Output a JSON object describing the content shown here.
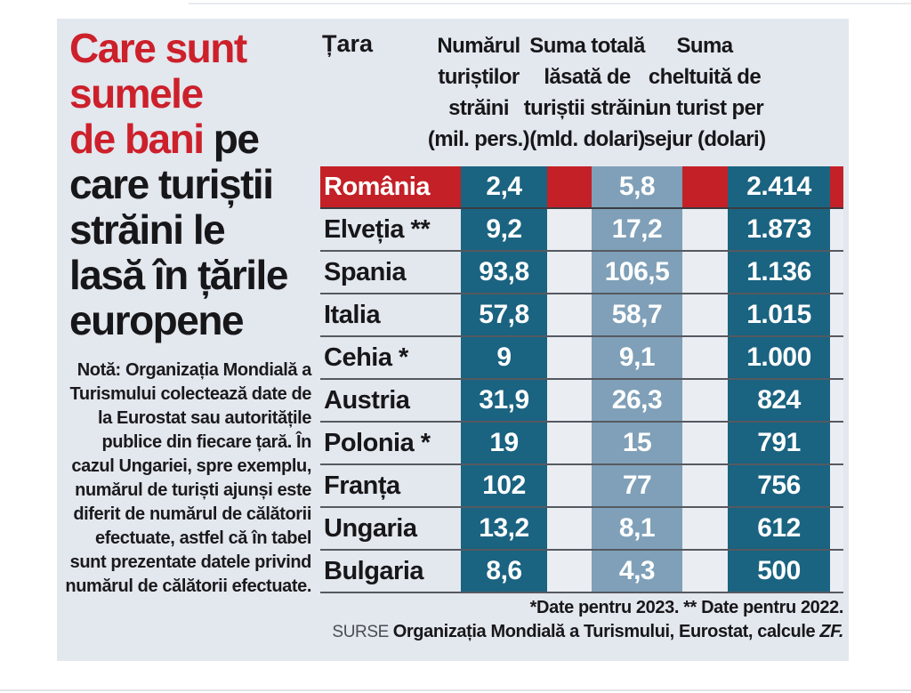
{
  "title": {
    "red_lines": "Care sunt\nsumele\nde bani",
    "black_inline": " pe",
    "black_lines": "care turiștii\nstrăini le\nlasă în țările\neuropene"
  },
  "note": "Notă: Organizația Mondială a Turismului colectează date de la Eurostat sau autoritățile publice din fiecare țară. În cazul Ungariei, spre exemplu, numărul de turiști ajunși este diferit de numărul de călătorii efectuate, astfel că în tabel sunt prezentate datele privind numărul de călătorii efectuate.",
  "table": {
    "headers": {
      "country": "Țara",
      "col1": "Numărul\nturiștilor\nstrăini\n(mil. pers.)",
      "col2": "Suma totală\nlăsată de\nturiștii străini\n(mld. dolari)",
      "col3": "Suma\ncheltuită de\nun turist per\nsejur (dolari)"
    },
    "rows": [
      {
        "country": "România",
        "tourists": "2,4",
        "total": "5,8",
        "per_tourist": "2.414",
        "highlight": true
      },
      {
        "country": "Elveția **",
        "tourists": "9,2",
        "total": "17,2",
        "per_tourist": "1.873",
        "highlight": false
      },
      {
        "country": "Spania",
        "tourists": "93,8",
        "total": "106,5",
        "per_tourist": "1.136",
        "highlight": false
      },
      {
        "country": "Italia",
        "tourists": "57,8",
        "total": "58,7",
        "per_tourist": "1.015",
        "highlight": false
      },
      {
        "country": "Cehia *",
        "tourists": "9",
        "total": "9,1",
        "per_tourist": "1.000",
        "highlight": false
      },
      {
        "country": "Austria",
        "tourists": "31,9",
        "total": "26,3",
        "per_tourist": "824",
        "highlight": false
      },
      {
        "country": "Polonia *",
        "tourists": "19",
        "total": "15",
        "per_tourist": "791",
        "highlight": false
      },
      {
        "country": "Franța",
        "tourists": "102",
        "total": "77",
        "per_tourist": "756",
        "highlight": false
      },
      {
        "country": "Ungaria",
        "tourists": "13,2",
        "total": "8,1",
        "per_tourist": "612",
        "highlight": false
      },
      {
        "country": "Bulgaria",
        "tourists": "8,6",
        "total": "4,3",
        "per_tourist": "500",
        "highlight": false
      }
    ]
  },
  "footer": {
    "footnote": "*Date pentru 2023. ** Date pentru 2022.",
    "source_label": "SURSE ",
    "source_main": "Organizația Mondială a Turismului, Eurostat, calcule ",
    "source_suffix": "ZF."
  },
  "colors": {
    "accent_red": "#c32127",
    "title_red": "#cc202b",
    "band_dark": "#1a6381",
    "band_light": "#7fa0b8",
    "panel_bg": "#e3e7ee",
    "value_text": "#ffffff",
    "body_text": "#17171a"
  },
  "chart_data": {
    "type": "table",
    "title": "Care sunt sumele de bani pe care turiștii străini le lasă în țările europene",
    "columns": [
      "Țara",
      "Numărul turiștilor străini (mil. pers.)",
      "Suma totală lăsată de turiștii străini (mld. dolari)",
      "Suma cheltuită de un turist per sejur (dolari)"
    ],
    "rows": [
      [
        "România",
        2.4,
        5.8,
        2414
      ],
      [
        "Elveția **",
        9.2,
        17.2,
        1873
      ],
      [
        "Spania",
        93.8,
        106.5,
        1136
      ],
      [
        "Italia",
        57.8,
        58.7,
        1015
      ],
      [
        "Cehia *",
        9,
        9.1,
        1000
      ],
      [
        "Austria",
        31.9,
        26.3,
        824
      ],
      [
        "Polonia *",
        19,
        15,
        791
      ],
      [
        "Franța",
        102,
        77,
        756
      ],
      [
        "Ungaria",
        13.2,
        8.1,
        612
      ],
      [
        "Bulgaria",
        8.6,
        4.3,
        500
      ]
    ],
    "highlighted_row": "România",
    "footnote": "*Date pentru 2023. ** Date pentru 2022.",
    "source": "SURSE Organizația Mondială a Turismului, Eurostat, calcule ZF."
  }
}
